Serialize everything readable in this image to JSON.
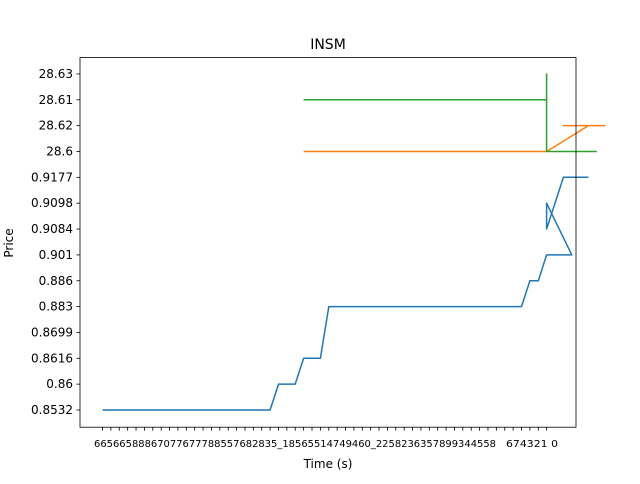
{
  "chart_data": {
    "type": "line",
    "title": "INSM",
    "xlabel": "Time (s)",
    "ylabel": "Price",
    "grid": false,
    "legend": "none",
    "y_categories": [
      "0.8532",
      "0.86",
      "0.8616",
      "0.8699",
      "0.883",
      "0.886",
      "0.901",
      "0.9084",
      "0.9098",
      "0.9177",
      "28.6",
      "28.62",
      "28.61",
      "28.63"
    ],
    "x_tick_count": 54,
    "x_tick_labels_start": [
      "6",
      "6"
    ],
    "x_tick_labels_end": [
      "6",
      "7",
      "4",
      "3",
      "2",
      "1",
      "0"
    ],
    "x_tick_overlap_text": "66566588867077677788557682835_18565514749460_2258236357899344558",
    "x_tick_tail_text": "674321 0",
    "series": [
      {
        "color": "#1f77b4",
        "points": [
          [
            0,
            0
          ],
          [
            20,
            0
          ],
          [
            21,
            1
          ],
          [
            23,
            1
          ],
          [
            24,
            2
          ],
          [
            26,
            2
          ],
          [
            27,
            4
          ],
          [
            50,
            4
          ],
          [
            51,
            5
          ],
          [
            52,
            5
          ],
          [
            53,
            6
          ],
          [
            56,
            6
          ],
          [
            53,
            8
          ],
          [
            53,
            7
          ],
          [
            55,
            9
          ],
          [
            58,
            9
          ]
        ]
      },
      {
        "color": "#ff7f0e",
        "points": [
          [
            24,
            10
          ],
          [
            53,
            10
          ],
          [
            58,
            11
          ],
          [
            55,
            11
          ],
          [
            60,
            11
          ]
        ]
      },
      {
        "color": "#2ca02c",
        "points": [
          [
            24,
            12
          ],
          [
            53,
            12
          ],
          [
            53,
            13
          ],
          [
            53,
            10
          ],
          [
            59,
            10
          ]
        ]
      }
    ]
  }
}
